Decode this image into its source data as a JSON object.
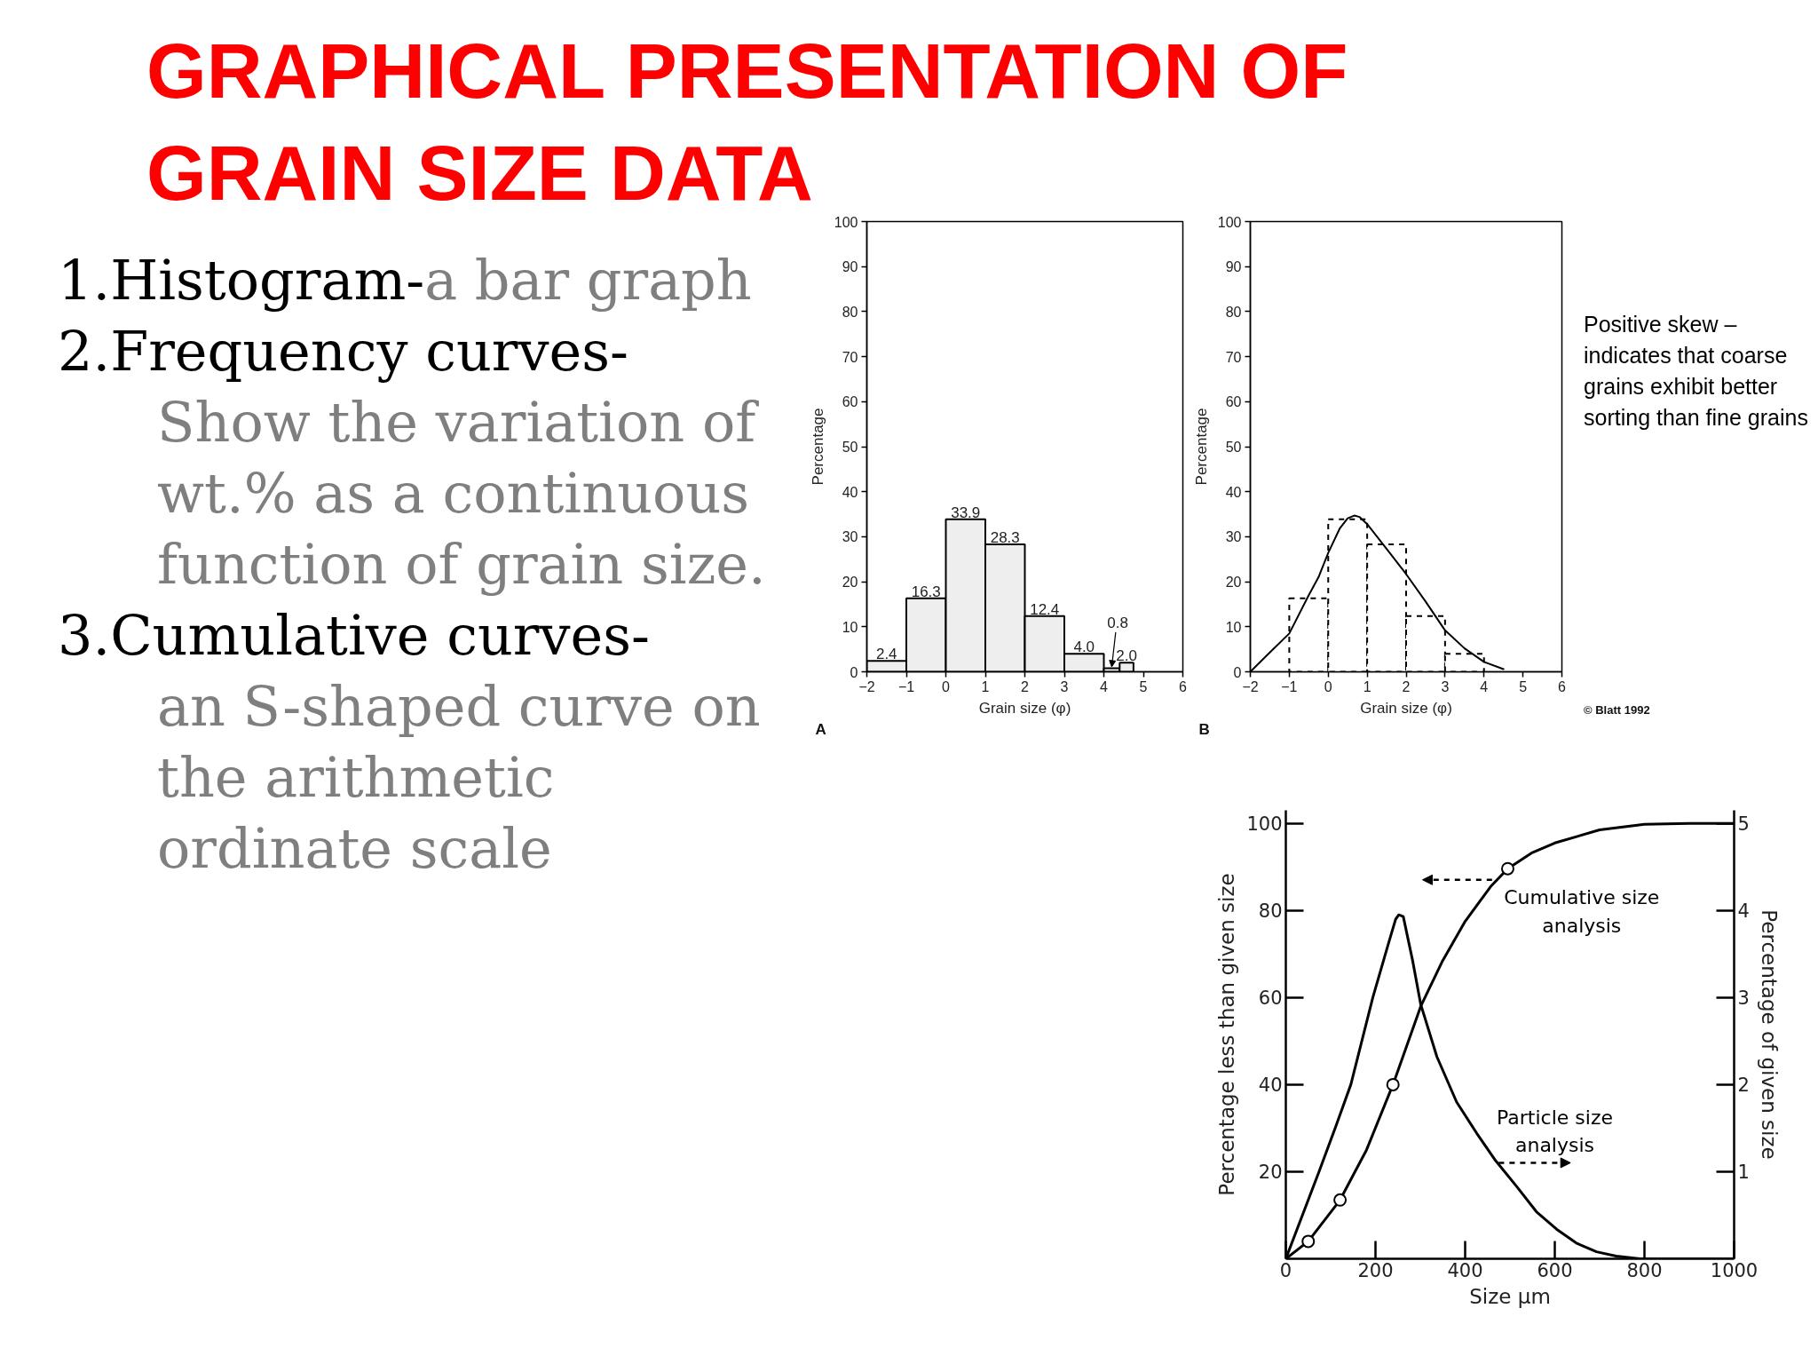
{
  "chart_data": [
    {
      "type": "other",
      "title": "GRAPHICAL PRESENTATION OF GRAIN SIZE DATA",
      "annotations": [
        "1.Histogram-",
        "a bar graph",
        "2.Frequency curves-",
        "Show the variation of wt.% as a continuous function of grain size.",
        "3.Cumulative curves-",
        "an S-shaped curve on the arithmetic ordinate scale"
      ]
    },
    {
      "type": "histogram",
      "bins": [
        -2,
        -1,
        0,
        1,
        2,
        3,
        4,
        4.4,
        4.75
      ],
      "values": [
        2.4,
        16.3,
        33.9,
        28.3,
        12.4,
        4.0,
        0.8,
        2.0
      ],
      "value_labels": [
        "2.4",
        "16.3",
        "33.9",
        "28.3",
        "12.4",
        "4.0",
        "0.8",
        "2.0"
      ],
      "color": "#eeeeee",
      "xlabel": "Grain size (φ)",
      "ylabel": "Percentage",
      "xlim": [
        -2,
        6
      ],
      "ylim": [
        0,
        100
      ],
      "xticks": [
        -2,
        -1,
        0,
        1,
        2,
        3,
        4,
        5,
        6
      ],
      "yticks": [
        0,
        10,
        20,
        30,
        40,
        50,
        60,
        70,
        80,
        90,
        100
      ],
      "annotations": [
        "A"
      ]
    },
    {
      "type": "histogram",
      "series": [
        {
          "type": "histogram",
          "bins": [
            -1,
            0,
            1,
            2,
            3,
            4
          ],
          "values": [
            16.3,
            33.9,
            28.3,
            12.4,
            4.0
          ],
          "color": "#ffffff",
          "line_style": "dashed"
        },
        {
          "type": "line",
          "x": [
            -2,
            -1.5,
            -1,
            -0.5,
            -0.25,
            0,
            0.3,
            0.5,
            0.67,
            0.8,
            1,
            1.5,
            2,
            2.5,
            3,
            3.5,
            4,
            4.5
          ],
          "values": [
            0,
            4.3,
            8.5,
            17,
            21,
            26.4,
            31.9,
            34.1,
            34.7,
            34.4,
            32.8,
            27.3,
            21.7,
            15.6,
            9.2,
            5.2,
            2.2,
            0.6
          ],
          "color": "#000000"
        }
      ],
      "xlabel": "Grain size (φ)",
      "ylabel": "Percentage",
      "xlim": [
        -2,
        6
      ],
      "ylim": [
        0,
        100
      ],
      "xticks": [
        -2,
        -1,
        0,
        1,
        2,
        3,
        4,
        5,
        6
      ],
      "yticks": [
        0,
        10,
        20,
        30,
        40,
        50,
        60,
        70,
        80,
        90,
        100
      ],
      "annotations": [
        "B",
        "Positive skew – indicates that coarse grains exhibit better sorting than fine grains",
        "© Blatt 1992"
      ]
    },
    {
      "type": "line",
      "series": [
        {
          "name": "Cumulative size analysis",
          "type": "line",
          "axis": "y",
          "x": [
            0,
            50,
            121,
            180,
            239,
            301,
            350,
            400,
            457,
            495,
            550,
            600,
            700,
            800,
            900,
            1000
          ],
          "values": [
            0,
            4,
            13.5,
            25,
            40,
            58,
            68.5,
            77.5,
            85.5,
            89.6,
            93.3,
            95.5,
            98.5,
            99.8,
            100,
            100
          ],
          "color": "#000000"
        },
        {
          "name": "Particle size analysis",
          "type": "line",
          "axis": "y2",
          "x": [
            0,
            74,
            110,
            145,
            194,
            230,
            245,
            252,
            262,
            283,
            301,
            337,
            381,
            426,
            466,
            515,
            559,
            604,
            648,
            693,
            737,
            790,
            1000
          ],
          "values": [
            0,
            1,
            1.5,
            2,
            3,
            3.64,
            3.9,
            3.95,
            3.93,
            3.42,
            2.92,
            2.32,
            1.8,
            1.44,
            1.14,
            0.83,
            0.54,
            0.34,
            0.18,
            0.08,
            0.03,
            0,
            0
          ],
          "color": "#000000"
        },
        {
          "type": "scatter",
          "axis": "y",
          "marker": "circle",
          "x": [
            50,
            121,
            239,
            495
          ],
          "values": [
            4,
            13.5,
            40,
            89.6
          ],
          "color": "#000000"
        }
      ],
      "xlabel": "Size μm",
      "ylabel": "Percentage less than given size",
      "y2label": "Percentage of given size",
      "xlim": [
        0,
        1000
      ],
      "ylim": [
        0,
        103
      ],
      "y2lim": [
        0,
        5.15
      ],
      "xticks": [
        0,
        200,
        400,
        600,
        800,
        1000
      ],
      "yticks": [
        20,
        40,
        60,
        80,
        100
      ],
      "y2ticks": [
        1,
        2,
        3,
        4,
        5
      ]
    }
  ]
}
